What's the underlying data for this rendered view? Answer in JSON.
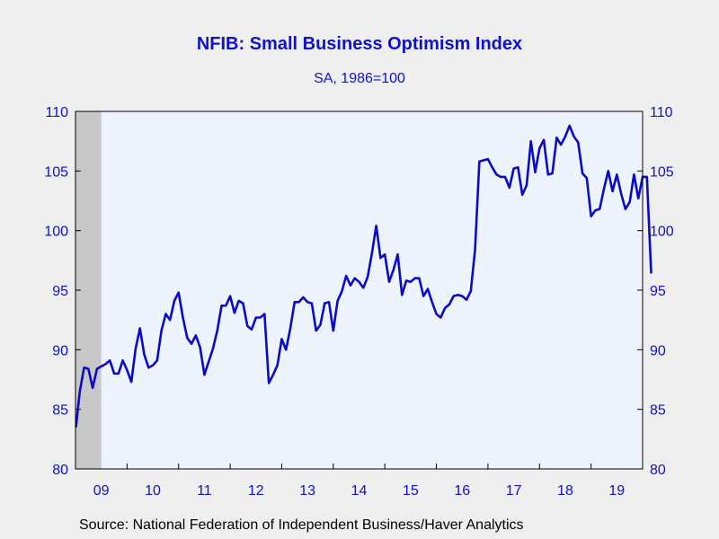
{
  "chart_data": {
    "type": "line",
    "title": "NFIB: Small Business Optimism Index",
    "subtitle": "SA, 1986=100",
    "source": "Source:  National Federation of Independent Business/Haver Analytics",
    "ylim": [
      80,
      110
    ],
    "yticks": [
      80,
      85,
      90,
      95,
      100,
      105,
      110
    ],
    "ytick_labels": [
      "80",
      "85",
      "90",
      "95",
      "100",
      "105",
      "110"
    ],
    "xtick_labels": [
      "09",
      "10",
      "11",
      "12",
      "13",
      "14",
      "15",
      "16",
      "17",
      "18",
      "19"
    ],
    "x_start_year": 2009,
    "recession_months": [
      "2009-01",
      "2009-06"
    ],
    "colors": {
      "line": "#0a0ac8",
      "text": "#1010d0",
      "plot_bg": "#eef4fd",
      "recession": "#c8c8c8",
      "page_bg": "#efefef"
    },
    "series": [
      {
        "start": "2009-01",
        "values": [
          83.5,
          86.5,
          88.5,
          88.4,
          86.8,
          88.4,
          88.6,
          88.8,
          89.1,
          88.0,
          88.0,
          89.1,
          88.3,
          87.3,
          90.1,
          91.8,
          89.6,
          88.5,
          88.7,
          89.1,
          91.6,
          93.0,
          92.5,
          94.1,
          94.8,
          92.7,
          91.0,
          90.5,
          91.2,
          90.2,
          87.9,
          89.0,
          90.1,
          91.6,
          93.7,
          93.7,
          94.5,
          93.1,
          94.1,
          93.9,
          92.0,
          91.7,
          92.7,
          92.7,
          93.0,
          87.2,
          87.9,
          88.7,
          90.9,
          90.0,
          91.8,
          94.0,
          94.0,
          94.4,
          94.0,
          93.9,
          91.6,
          92.1,
          93.9,
          94.0,
          91.6,
          94.1,
          94.9,
          96.2,
          95.4,
          96.0,
          95.7,
          95.2,
          96.1,
          98.1,
          100.4,
          97.7,
          98.0,
          95.7,
          96.7,
          98.0,
          94.6,
          95.8,
          95.7,
          96.0,
          96.0,
          94.5,
          95.1,
          94.0,
          93.0,
          92.7,
          93.5,
          93.8,
          94.5,
          94.6,
          94.5,
          94.2,
          94.9,
          98.4,
          105.8,
          105.9,
          106.0,
          105.3,
          104.7,
          104.5,
          104.5,
          103.6,
          105.2,
          105.3,
          103.0,
          103.8,
          107.5,
          104.9,
          106.9,
          107.6,
          104.7,
          104.8,
          107.8,
          107.2,
          107.9,
          108.8,
          107.9,
          107.4,
          104.8,
          104.4,
          101.2,
          101.7,
          101.8,
          103.5,
          105.0,
          103.3,
          104.7,
          103.1,
          101.8,
          102.4,
          104.7,
          102.7,
          104.5,
          104.5,
          96.4
        ]
      }
    ]
  }
}
